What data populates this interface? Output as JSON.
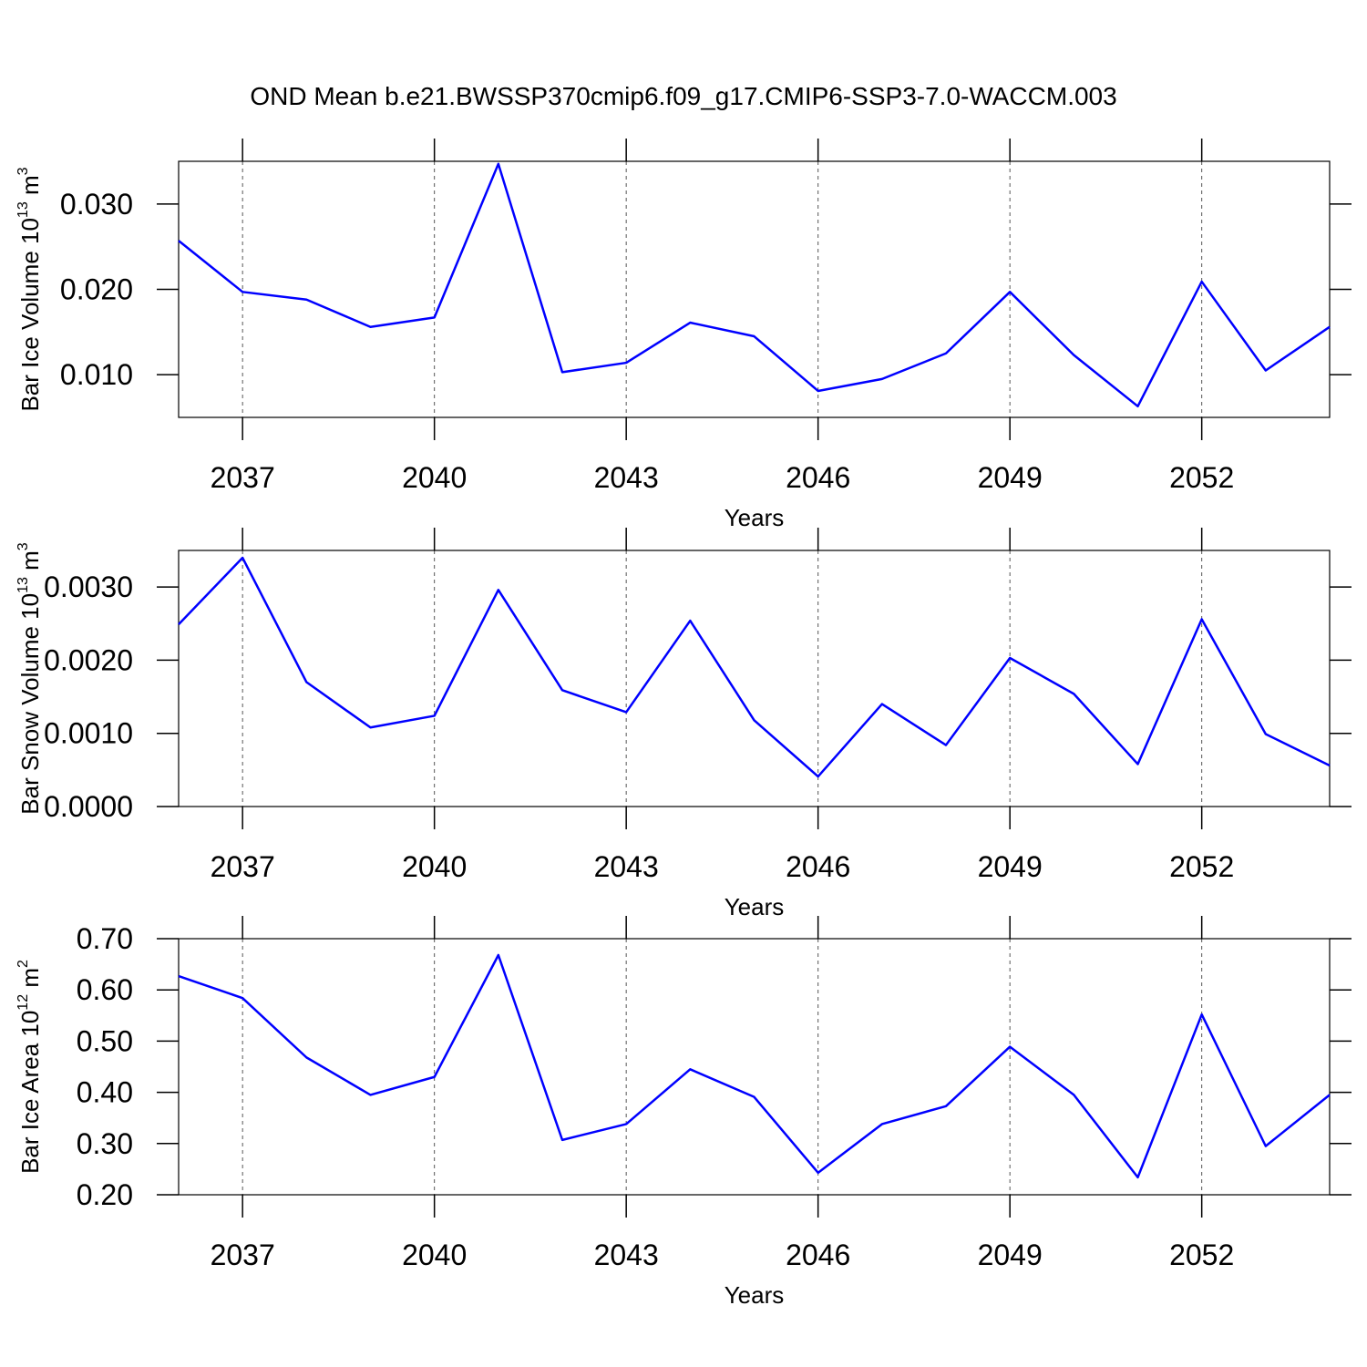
{
  "title": "OND Mean b.e21.BWSSP370cmip6.f09_g17.CMIP6-SSP3-7.0-WACCM.003",
  "chart_data": [
    {
      "type": "line",
      "ylabel": {
        "text": "Bar Ice Volume 10",
        "exponent": "13",
        "unit": " m",
        "unit_exponent": "3"
      },
      "xlabel": "Years",
      "x": [
        2036,
        2037,
        2038,
        2039,
        2040,
        2041,
        2042,
        2043,
        2044,
        2045,
        2046,
        2047,
        2048,
        2049,
        2050,
        2051,
        2052,
        2053,
        2054
      ],
      "series": [
        {
          "color": "#0000ff",
          "values": [
            0.0257,
            0.0197,
            0.0188,
            0.0156,
            0.0167,
            0.0347,
            0.0103,
            0.0114,
            0.0161,
            0.0145,
            0.0081,
            0.0095,
            0.0125,
            0.0197,
            0.0123,
            0.0063,
            0.0209,
            0.0105,
            0.0156
          ]
        }
      ],
      "xlim": [
        2036,
        2054
      ],
      "xticks": [
        2037,
        2040,
        2043,
        2046,
        2049,
        2052
      ],
      "ylim": [
        0.005,
        0.035
      ],
      "yticks": [
        {
          "value": 0.01,
          "label": "0.010"
        },
        {
          "value": 0.02,
          "label": "0.020"
        },
        {
          "value": 0.03,
          "label": "0.030"
        }
      ],
      "grid": true
    },
    {
      "type": "line",
      "ylabel": {
        "text": "Bar Snow Volume 10",
        "exponent": "13",
        "unit": " m",
        "unit_exponent": "3"
      },
      "xlabel": "Years",
      "x": [
        2036,
        2037,
        2038,
        2039,
        2040,
        2041,
        2042,
        2043,
        2044,
        2045,
        2046,
        2047,
        2048,
        2049,
        2050,
        2051,
        2052,
        2053,
        2054
      ],
      "series": [
        {
          "color": "#0000ff",
          "values": [
            0.00249,
            0.0034,
            0.0017,
            0.00108,
            0.00124,
            0.00296,
            0.00159,
            0.00129,
            0.00254,
            0.00118,
            0.00041,
            0.0014,
            0.00084,
            0.00203,
            0.00154,
            0.00058,
            0.00256,
            0.00099,
            0.00056
          ]
        }
      ],
      "xlim": [
        2036,
        2054
      ],
      "xticks": [
        2037,
        2040,
        2043,
        2046,
        2049,
        2052
      ],
      "ylim": [
        0,
        0.0035
      ],
      "yticks": [
        {
          "value": 0,
          "label": "0.0000"
        },
        {
          "value": 0.001,
          "label": "0.0010"
        },
        {
          "value": 0.002,
          "label": "0.0020"
        },
        {
          "value": 0.003,
          "label": "0.0030"
        }
      ],
      "grid": true
    },
    {
      "type": "line",
      "ylabel": {
        "text": "Bar Ice Area 10",
        "exponent": "12",
        "unit": " m",
        "unit_exponent": "2"
      },
      "xlabel": "Years",
      "x": [
        2036,
        2037,
        2038,
        2039,
        2040,
        2041,
        2042,
        2043,
        2044,
        2045,
        2046,
        2047,
        2048,
        2049,
        2050,
        2051,
        2052,
        2053,
        2054
      ],
      "series": [
        {
          "color": "#0000ff",
          "values": [
            0.627,
            0.584,
            0.468,
            0.395,
            0.43,
            0.668,
            0.307,
            0.338,
            0.445,
            0.391,
            0.243,
            0.338,
            0.373,
            0.489,
            0.395,
            0.234,
            0.552,
            0.295,
            0.395
          ]
        }
      ],
      "xlim": [
        2036,
        2054
      ],
      "xticks": [
        2037,
        2040,
        2043,
        2046,
        2049,
        2052
      ],
      "ylim": [
        0.2,
        0.7
      ],
      "yticks": [
        {
          "value": 0.2,
          "label": "0.20"
        },
        {
          "value": 0.3,
          "label": "0.30"
        },
        {
          "value": 0.4,
          "label": "0.40"
        },
        {
          "value": 0.5,
          "label": "0.50"
        },
        {
          "value": 0.6,
          "label": "0.60"
        },
        {
          "value": 0.7,
          "label": "0.70"
        }
      ],
      "grid": true
    }
  ]
}
